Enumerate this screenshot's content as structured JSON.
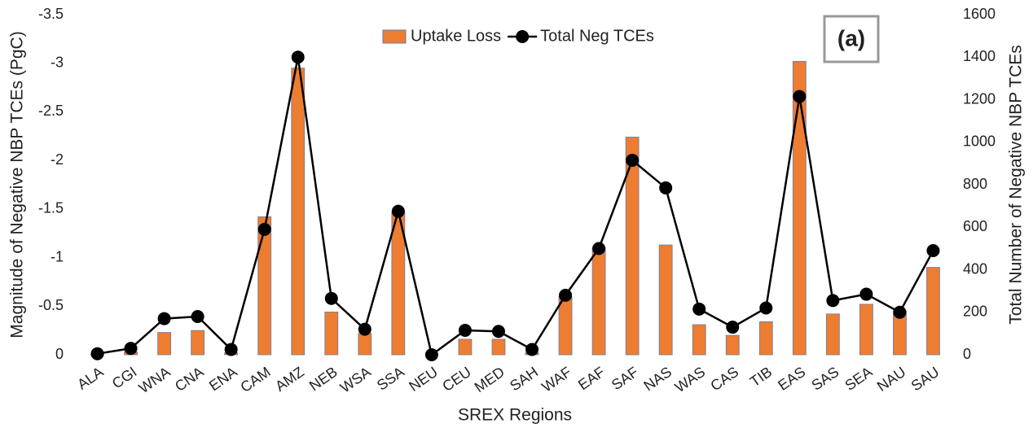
{
  "chart_data": {
    "type": "bar",
    "annotation": "(a)",
    "x_label": "SREX Regions",
    "y_label": "Magnitude of Negative NBP TCEs (PgC)",
    "y2_label": "Total Number of Negative NBP TCEs",
    "categories": [
      "ALA",
      "CGI",
      "WNA",
      "CNA",
      "ENA",
      "CAM",
      "AMZ",
      "NEB",
      "WSA",
      "SSA",
      "NEU",
      "CEU",
      "MED",
      "SAH",
      "WAF",
      "EAF",
      "SAF",
      "NAS",
      "WAS",
      "CAS",
      "TIB",
      "EAS",
      "SAS",
      "SEA",
      "NAU",
      "SAU"
    ],
    "series": [
      {
        "name": "Uptake Loss",
        "type": "bar",
        "color": "#ed7d31",
        "values": [
          -0.005,
          -0.03,
          -0.23,
          -0.25,
          -0.02,
          -1.42,
          -2.95,
          -0.44,
          -0.22,
          -1.47,
          0,
          -0.16,
          -0.16,
          -0.02,
          -0.6,
          -1.1,
          -2.24,
          -1.13,
          -0.31,
          -0.2,
          -0.34,
          -3.02,
          -0.42,
          -0.52,
          -0.45,
          -0.9
        ]
      },
      {
        "name": "Total Neg TCEs",
        "type": "line",
        "axis": "y2",
        "color": "#000000",
        "values": [
          5,
          30,
          170,
          180,
          25,
          590,
          1400,
          265,
          120,
          675,
          0,
          115,
          110,
          25,
          280,
          500,
          915,
          785,
          215,
          130,
          220,
          1215,
          255,
          285,
          200,
          490
        ]
      }
    ],
    "ylim": [
      0,
      -3.5
    ],
    "yticks": [
      0,
      -0.5,
      -1,
      -1.5,
      -2,
      -2.5,
      -3,
      -3.5
    ],
    "y2lim": [
      0,
      1600
    ],
    "y2ticks": [
      0,
      200,
      400,
      600,
      800,
      1000,
      1200,
      1400,
      1600
    ],
    "grid": false,
    "legend": "top"
  }
}
